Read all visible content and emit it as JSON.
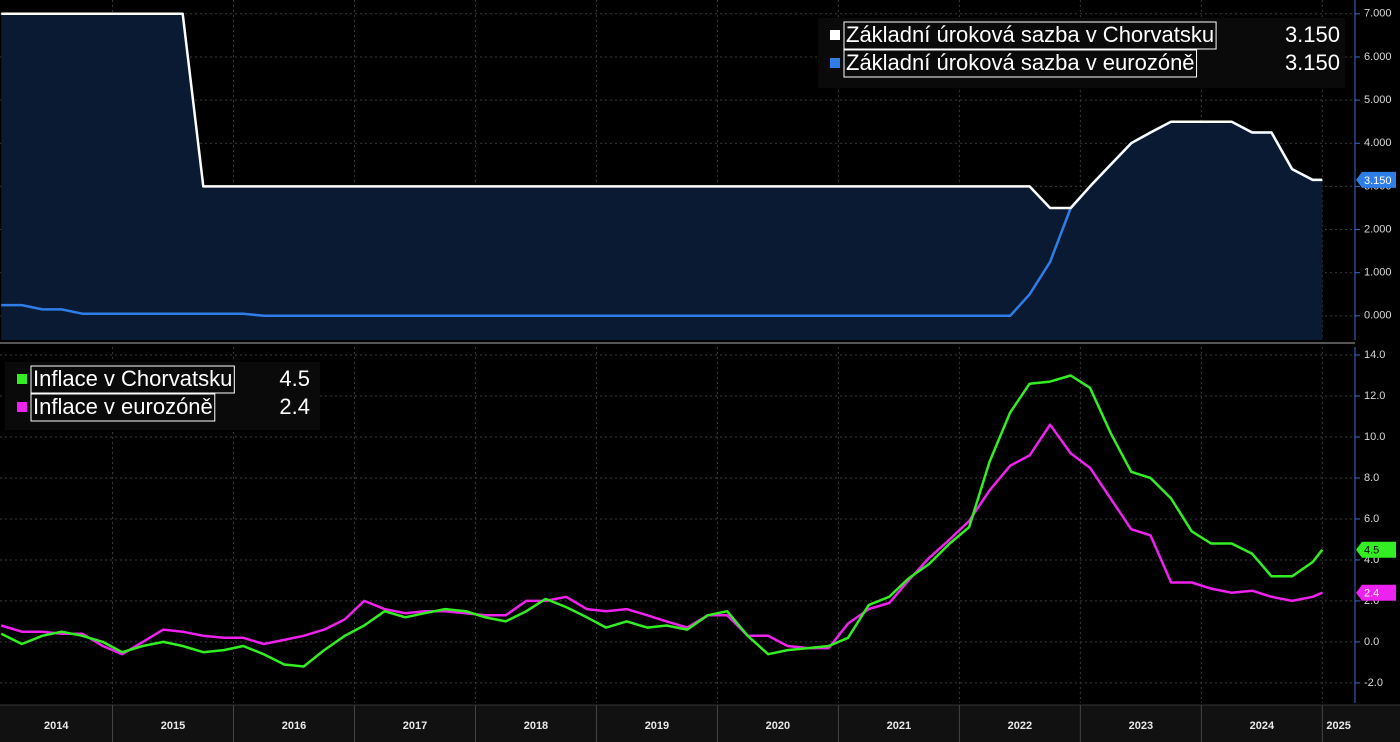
{
  "chart_data": [
    {
      "type": "line",
      "ylim": [
        -0.56,
        7.32
      ],
      "yticks": [
        {
          "value": 0,
          "label": "0.000"
        },
        {
          "value": 1,
          "label": "1.000"
        },
        {
          "value": 2,
          "label": "2.000"
        },
        {
          "value": 3,
          "label": "3.000"
        },
        {
          "value": 4,
          "label": "4.000"
        },
        {
          "value": 5,
          "label": "5.000"
        },
        {
          "value": 6,
          "label": "6.000"
        },
        {
          "value": 7,
          "label": "7.000"
        }
      ],
      "grid": true,
      "legend": "upper right",
      "xlim": [
        2014.07,
        2025.27
      ],
      "x": [
        2014.08,
        2014.25,
        2014.42,
        2014.58,
        2014.75,
        2014.92,
        2015.08,
        2015.25,
        2015.42,
        2015.58,
        2015.75,
        2015.92,
        2016.08,
        2016.25,
        2016.42,
        2016.58,
        2016.75,
        2016.92,
        2017.08,
        2017.25,
        2017.42,
        2017.58,
        2017.75,
        2017.92,
        2018.08,
        2018.25,
        2018.42,
        2018.58,
        2018.75,
        2018.92,
        2019.08,
        2019.25,
        2019.42,
        2019.58,
        2019.75,
        2019.92,
        2020.08,
        2020.25,
        2020.42,
        2020.58,
        2020.75,
        2020.92,
        2021.08,
        2021.25,
        2021.42,
        2021.58,
        2021.75,
        2021.92,
        2022.08,
        2022.25,
        2022.42,
        2022.58,
        2022.75,
        2022.92,
        2023.08,
        2023.25,
        2023.42,
        2023.58,
        2023.75,
        2023.92,
        2024.08,
        2024.25,
        2024.42,
        2024.58,
        2024.75,
        2024.92,
        2025.0
      ],
      "series": [
        {
          "name": "Základní úroková sazba v Chorvatsku",
          "color": "#ffffff",
          "fill": "#0b1a33",
          "legend_value": "3.150",
          "values": [
            7,
            7,
            7,
            7,
            7,
            7,
            7,
            7,
            7,
            7,
            3,
            3,
            3,
            3,
            3,
            3,
            3,
            3,
            3,
            3,
            3,
            3,
            3,
            3,
            3,
            3,
            3,
            3,
            3,
            3,
            3,
            3,
            3,
            3,
            3,
            3,
            3,
            3,
            3,
            3,
            3,
            3,
            3,
            3,
            3,
            3,
            3,
            3,
            3,
            3,
            3,
            3,
            2.5,
            2.5,
            3.0,
            3.5,
            4.0,
            4.25,
            4.5,
            4.5,
            4.5,
            4.5,
            4.25,
            4.25,
            3.4,
            3.15,
            3.15
          ]
        },
        {
          "name": "Základní úroková sazba v eurozóně",
          "color": "#2f7ee8",
          "legend_value": "3.150",
          "values": [
            0.25,
            0.25,
            0.15,
            0.15,
            0.05,
            0.05,
            0.05,
            0.05,
            0.05,
            0.05,
            0.05,
            0.05,
            0.05,
            0,
            0,
            0,
            0,
            0,
            0,
            0,
            0,
            0,
            0,
            0,
            0,
            0,
            0,
            0,
            0,
            0,
            0,
            0,
            0,
            0,
            0,
            0,
            0,
            0,
            0,
            0,
            0,
            0,
            0,
            0,
            0,
            0,
            0,
            0,
            0,
            0,
            0,
            0.5,
            1.25,
            2.5,
            3.0,
            3.5,
            4.0,
            4.25,
            4.5,
            4.5,
            4.5,
            4.5,
            4.25,
            4.25,
            3.4,
            3.15,
            3.15
          ]
        }
      ]
    },
    {
      "type": "line",
      "ylim": [
        -2.98,
        14.39
      ],
      "yticks": [
        {
          "value": -2,
          "label": "-2.0"
        },
        {
          "value": 0,
          "label": "0.0"
        },
        {
          "value": 2,
          "label": "2.0"
        },
        {
          "value": 4,
          "label": "4.0"
        },
        {
          "value": 6,
          "label": "6.0"
        },
        {
          "value": 8,
          "label": "8.0"
        },
        {
          "value": 10,
          "label": "10.0"
        },
        {
          "value": 12,
          "label": "12.0"
        },
        {
          "value": 14,
          "label": "14.0"
        }
      ],
      "grid": true,
      "legend": "upper left",
      "xlim": [
        2014.07,
        2025.27
      ],
      "xticks": [
        2014,
        2015,
        2016,
        2017,
        2018,
        2019,
        2020,
        2021,
        2022,
        2023,
        2024,
        2025
      ],
      "x": [
        2014.08,
        2014.25,
        2014.42,
        2014.58,
        2014.75,
        2014.92,
        2015.08,
        2015.25,
        2015.42,
        2015.58,
        2015.75,
        2015.92,
        2016.08,
        2016.25,
        2016.42,
        2016.58,
        2016.75,
        2016.92,
        2017.08,
        2017.25,
        2017.42,
        2017.58,
        2017.75,
        2017.92,
        2018.08,
        2018.25,
        2018.42,
        2018.58,
        2018.75,
        2018.92,
        2019.08,
        2019.25,
        2019.42,
        2019.58,
        2019.75,
        2019.92,
        2020.08,
        2020.25,
        2020.42,
        2020.58,
        2020.75,
        2020.92,
        2021.08,
        2021.25,
        2021.42,
        2021.58,
        2021.75,
        2021.92,
        2022.08,
        2022.25,
        2022.42,
        2022.58,
        2022.75,
        2022.92,
        2023.08,
        2023.25,
        2023.42,
        2023.58,
        2023.75,
        2023.92,
        2024.08,
        2024.25,
        2024.42,
        2024.58,
        2024.75,
        2024.92,
        2025.0
      ],
      "series": [
        {
          "name": "Inflace v Chorvatsku",
          "color": "#33ee22",
          "legend_value": "4.5",
          "values": [
            0.4,
            -0.1,
            0.3,
            0.5,
            0.3,
            0.0,
            -0.5,
            -0.2,
            0.0,
            -0.2,
            -0.5,
            -0.4,
            -0.2,
            -0.6,
            -1.1,
            -1.2,
            -0.4,
            0.3,
            0.8,
            1.5,
            1.2,
            1.4,
            1.6,
            1.5,
            1.2,
            1.0,
            1.5,
            2.1,
            1.7,
            1.2,
            0.7,
            1.0,
            0.7,
            0.8,
            0.6,
            1.3,
            1.5,
            0.3,
            -0.6,
            -0.4,
            -0.3,
            -0.2,
            0.2,
            1.8,
            2.2,
            3.1,
            3.8,
            4.8,
            5.6,
            8.8,
            11.2,
            12.6,
            12.7,
            13.0,
            12.4,
            10.2,
            8.3,
            8.0,
            7.0,
            5.4,
            4.8,
            4.8,
            4.3,
            3.2,
            3.2,
            3.9,
            4.5
          ]
        },
        {
          "name": "Inflace v eurozóně",
          "color": "#ee22ee",
          "legend_value": "2.4",
          "values": [
            0.8,
            0.5,
            0.5,
            0.4,
            0.4,
            -0.2,
            -0.6,
            0.0,
            0.6,
            0.5,
            0.3,
            0.2,
            0.2,
            -0.1,
            0.1,
            0.3,
            0.6,
            1.1,
            2.0,
            1.6,
            1.4,
            1.5,
            1.5,
            1.4,
            1.3,
            1.3,
            2.0,
            2.0,
            2.2,
            1.6,
            1.5,
            1.6,
            1.3,
            1.0,
            0.7,
            1.3,
            1.3,
            0.3,
            0.3,
            -0.2,
            -0.3,
            -0.3,
            0.9,
            1.6,
            1.9,
            3.0,
            4.1,
            5.0,
            5.9,
            7.4,
            8.6,
            9.1,
            10.6,
            9.2,
            8.5,
            7.0,
            5.5,
            5.2,
            2.9,
            2.9,
            2.6,
            2.4,
            2.5,
            2.2,
            2.0,
            2.2,
            2.4
          ]
        }
      ]
    }
  ]
}
